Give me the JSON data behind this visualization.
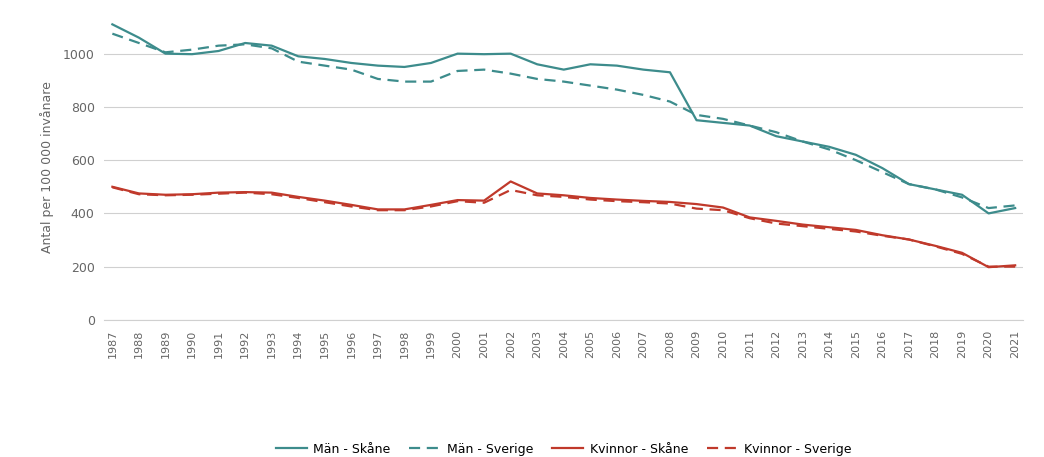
{
  "years": [
    1987,
    1988,
    1989,
    1990,
    1991,
    1992,
    1993,
    1994,
    1995,
    1996,
    1997,
    1998,
    1999,
    2000,
    2001,
    2002,
    2003,
    2004,
    2005,
    2006,
    2007,
    2008,
    2009,
    2010,
    2011,
    2012,
    2013,
    2014,
    2015,
    2016,
    2017,
    2018,
    2019,
    2020,
    2021
  ],
  "man_skane": [
    1110,
    1060,
    1000,
    998,
    1010,
    1040,
    1030,
    990,
    980,
    965,
    955,
    950,
    965,
    1000,
    998,
    1000,
    960,
    940,
    960,
    955,
    940,
    930,
    750,
    740,
    730,
    690,
    670,
    650,
    620,
    570,
    510,
    490,
    470,
    400,
    420
  ],
  "man_sverige": [
    1075,
    1040,
    1005,
    1015,
    1030,
    1035,
    1020,
    970,
    955,
    940,
    905,
    895,
    895,
    935,
    940,
    925,
    905,
    895,
    880,
    865,
    845,
    820,
    770,
    755,
    730,
    705,
    670,
    640,
    600,
    555,
    510,
    490,
    460,
    420,
    430
  ],
  "kvinna_skane": [
    500,
    475,
    470,
    472,
    478,
    480,
    478,
    462,
    448,
    432,
    415,
    415,
    432,
    450,
    448,
    520,
    475,
    468,
    458,
    452,
    447,
    443,
    435,
    422,
    385,
    372,
    358,
    348,
    338,
    318,
    302,
    278,
    252,
    198,
    205
  ],
  "kvinna_sverige": [
    498,
    472,
    468,
    470,
    474,
    478,
    472,
    458,
    442,
    426,
    412,
    412,
    426,
    446,
    440,
    488,
    468,
    462,
    452,
    446,
    442,
    437,
    418,
    412,
    382,
    362,
    352,
    342,
    332,
    316,
    302,
    276,
    248,
    200,
    200
  ],
  "teal_color": "#3d8c8c",
  "red_color": "#c0392b",
  "ylabel": "Antal per 100 000 invånare",
  "yticks": [
    0,
    200,
    400,
    600,
    800,
    1000
  ],
  "ylim": [
    0,
    1150
  ],
  "legend_labels": [
    "Män - Skåne",
    "Män - Sverige",
    "Kvinnor - Skåne",
    "Kvinnor - Sverige"
  ],
  "background_color": "#ffffff",
  "grid_color": "#d0d0d0"
}
